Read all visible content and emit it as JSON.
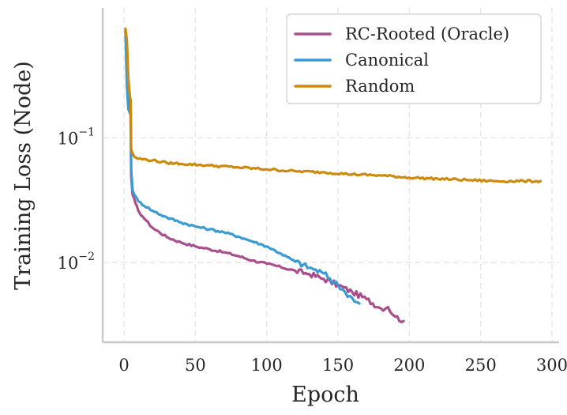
{
  "chart_data": {
    "type": "line",
    "title": "",
    "xlabel": "Epoch",
    "ylabel": "Training Loss (Node)",
    "yscale": "log",
    "xlim": [
      -15,
      305
    ],
    "ylim": [
      0.0023,
      1.1
    ],
    "xticks": [
      0,
      50,
      100,
      150,
      200,
      250,
      300
    ],
    "xtick_labels": [
      "0",
      "50",
      "100",
      "150",
      "200",
      "250",
      "300"
    ],
    "yticks": [
      0.1,
      0.01
    ],
    "ytick_labels": [
      {
        "base": "10",
        "exp": "−1"
      },
      {
        "base": "10",
        "exp": "−2"
      }
    ],
    "grid": true,
    "legend_position": "top-right",
    "series": [
      {
        "name": "RC-Rooted (Oracle)",
        "color": "#a94f8c",
        "points": [
          [
            1,
            0.72
          ],
          [
            2,
            0.45
          ],
          [
            3,
            0.22
          ],
          [
            4,
            0.18
          ],
          [
            4.6,
            0.2
          ],
          [
            5,
            0.05
          ],
          [
            6,
            0.035
          ],
          [
            8,
            0.03
          ],
          [
            10,
            0.026
          ],
          [
            15,
            0.022
          ],
          [
            20,
            0.019
          ],
          [
            30,
            0.016
          ],
          [
            40,
            0.0145
          ],
          [
            50,
            0.0135
          ],
          [
            60,
            0.0128
          ],
          [
            70,
            0.0121
          ],
          [
            80,
            0.0113
          ],
          [
            90,
            0.0104
          ],
          [
            100,
            0.0098
          ],
          [
            110,
            0.0092
          ],
          [
            120,
            0.0086
          ],
          [
            130,
            0.0081
          ],
          [
            140,
            0.0074
          ],
          [
            150,
            0.0066
          ],
          [
            160,
            0.0058
          ],
          [
            170,
            0.0051
          ],
          [
            180,
            0.0043
          ],
          [
            185,
            0.0044
          ],
          [
            190,
            0.0037
          ],
          [
            196,
            0.0034
          ]
        ]
      },
      {
        "name": "Canonical",
        "color": "#3b9bd3",
        "points": [
          [
            1,
            0.7
          ],
          [
            2,
            0.26
          ],
          [
            3,
            0.17
          ],
          [
            4,
            0.16
          ],
          [
            4.6,
            0.15
          ],
          [
            5,
            0.055
          ],
          [
            6,
            0.038
          ],
          [
            8,
            0.034
          ],
          [
            10,
            0.031
          ],
          [
            20,
            0.026
          ],
          [
            30,
            0.023
          ],
          [
            40,
            0.021
          ],
          [
            50,
            0.0195
          ],
          [
            60,
            0.0185
          ],
          [
            70,
            0.0175
          ],
          [
            80,
            0.0162
          ],
          [
            90,
            0.0148
          ],
          [
            100,
            0.0135
          ],
          [
            110,
            0.0118
          ],
          [
            120,
            0.0102
          ],
          [
            130,
            0.0091
          ],
          [
            140,
            0.0082
          ],
          [
            150,
            0.0066
          ],
          [
            155,
            0.0058
          ],
          [
            160,
            0.0052
          ],
          [
            165,
            0.0047
          ]
        ]
      },
      {
        "name": "Random",
        "color": "#cc8a0e",
        "points": [
          [
            1,
            0.75
          ],
          [
            2,
            0.6
          ],
          [
            3,
            0.3
          ],
          [
            4,
            0.22
          ],
          [
            4.6,
            0.2
          ],
          [
            5,
            0.08
          ],
          [
            7,
            0.071
          ],
          [
            10,
            0.068
          ],
          [
            20,
            0.066
          ],
          [
            30,
            0.063
          ],
          [
            40,
            0.062
          ],
          [
            60,
            0.06
          ],
          [
            80,
            0.058
          ],
          [
            100,
            0.056
          ],
          [
            120,
            0.054
          ],
          [
            140,
            0.053
          ],
          [
            160,
            0.051
          ],
          [
            180,
            0.05
          ],
          [
            200,
            0.048
          ],
          [
            220,
            0.047
          ],
          [
            240,
            0.046
          ],
          [
            260,
            0.045
          ],
          [
            280,
            0.045
          ],
          [
            292,
            0.045
          ]
        ]
      }
    ]
  }
}
